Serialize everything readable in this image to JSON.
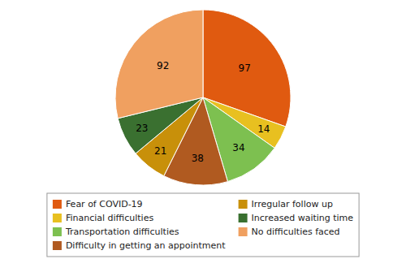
{
  "chart_data": {
    "type": "pie",
    "categories": [
      "Fear of COVID-19",
      "Financial difficulties",
      "Transportation difficulties",
      "Difficulty in getting an appointment",
      "Irregular follow up",
      "Increased waiting time",
      "No difficulties faced"
    ],
    "values": [
      97,
      14,
      34,
      38,
      21,
      23,
      92
    ],
    "colors": [
      "#E05A10",
      "#E8C020",
      "#7DC050",
      "#B05A20",
      "#C8900A",
      "#3A7030",
      "#F0A060"
    ],
    "data_labels": true,
    "legend": "bottom"
  }
}
